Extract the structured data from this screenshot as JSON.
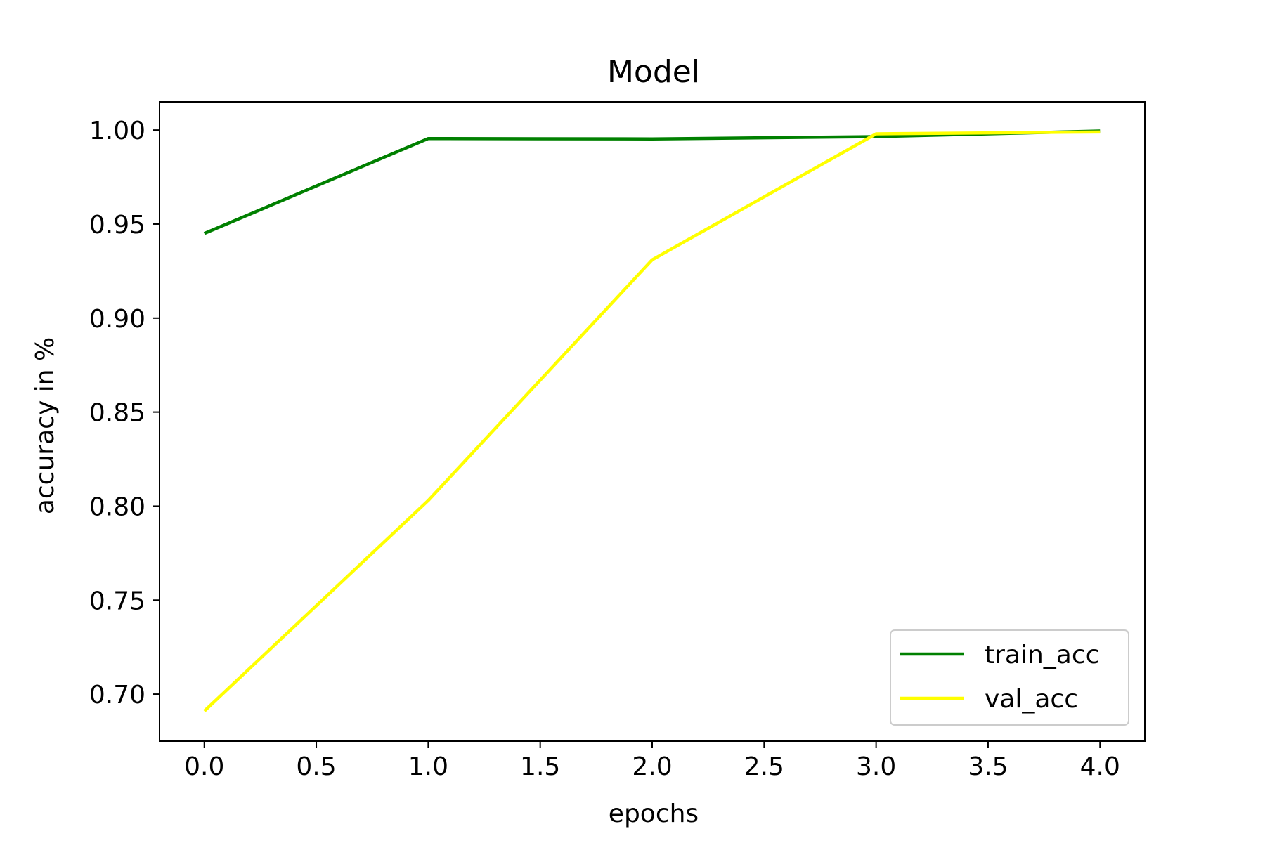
{
  "chart_data": {
    "type": "line",
    "title": "Model",
    "xlabel": "epochs",
    "ylabel": "accuracy in %",
    "x": [
      0,
      1,
      2,
      3,
      4
    ],
    "xlim": [
      -0.2,
      4.2
    ],
    "ylim": [
      0.675,
      1.015
    ],
    "xticks": [
      "0.0",
      "0.5",
      "1.0",
      "1.5",
      "2.0",
      "2.5",
      "3.0",
      "3.5",
      "4.0"
    ],
    "yticks": [
      "0.70",
      "0.75",
      "0.80",
      "0.85",
      "0.90",
      "0.95",
      "1.00"
    ],
    "grid": false,
    "legend_position": "lower-right",
    "series": [
      {
        "name": "train_acc",
        "color": "#008000",
        "values": [
          0.945,
          0.9955,
          0.9953,
          0.9965,
          0.9995
        ]
      },
      {
        "name": "val_acc",
        "color": "#ffff00",
        "values": [
          0.691,
          0.803,
          0.931,
          0.998,
          0.999
        ]
      }
    ]
  }
}
